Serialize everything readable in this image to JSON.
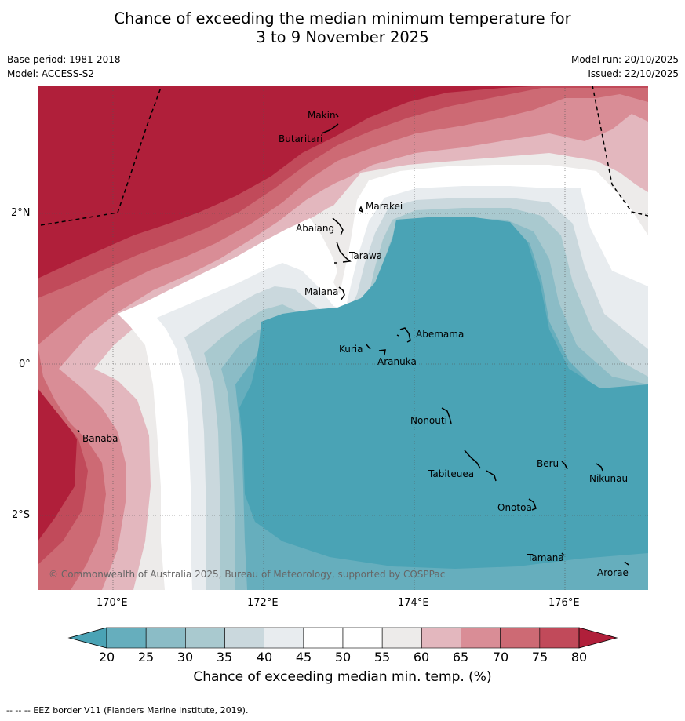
{
  "title": {
    "line1": "Chance of exceeding the median minimum temperature for",
    "line2": "3 to 9 November 2025"
  },
  "meta": {
    "base_period": "Base period: 1981-2018",
    "model": "Model: ACCESS-S2",
    "model_run": "Model run: 20/10/2025",
    "issued": "Issued: 22/10/2025"
  },
  "axes": {
    "x_ticks": [
      "170°E",
      "172°E",
      "174°E",
      "176°E"
    ],
    "y_ticks": [
      "2°N",
      "0°",
      "2°S"
    ]
  },
  "places": [
    {
      "name": "Makin"
    },
    {
      "name": "Butaritari"
    },
    {
      "name": "Marakei"
    },
    {
      "name": "Abaiang"
    },
    {
      "name": "Tarawa"
    },
    {
      "name": "Maiana"
    },
    {
      "name": "Abemama"
    },
    {
      "name": "Kuria"
    },
    {
      "name": "Aranuka"
    },
    {
      "name": "Banaba"
    },
    {
      "name": "Nonouti"
    },
    {
      "name": "Beru"
    },
    {
      "name": "Tabiteuea"
    },
    {
      "name": "Nikunau"
    },
    {
      "name": "Onotoa"
    },
    {
      "name": "Tamana"
    },
    {
      "name": "Arorae"
    }
  ],
  "copyright": "© Commonwealth of Australia 2025, Bureau of Meteorology, supported by COSPPac",
  "colorbar": {
    "ticks": [
      "20",
      "25",
      "30",
      "35",
      "40",
      "45",
      "50",
      "55",
      "60",
      "65",
      "70",
      "75",
      "80"
    ],
    "colors": [
      "#66aebd",
      "#8bbcc6",
      "#a9c9cf",
      "#cad8dd",
      "#e8ecef",
      "#ffffff",
      "#ffffff",
      "#edebea",
      "#e3b7be",
      "#d98d96",
      "#cd6a74",
      "#c14a5a"
    ],
    "low_color": "#4aa3b5",
    "high_color": "#b01f3a",
    "label": "Chance of exceeding median min. temp. (%)"
  },
  "footnote": "--  --  -- EEZ border V11 (Flanders Marine Institute, 2019)."
}
